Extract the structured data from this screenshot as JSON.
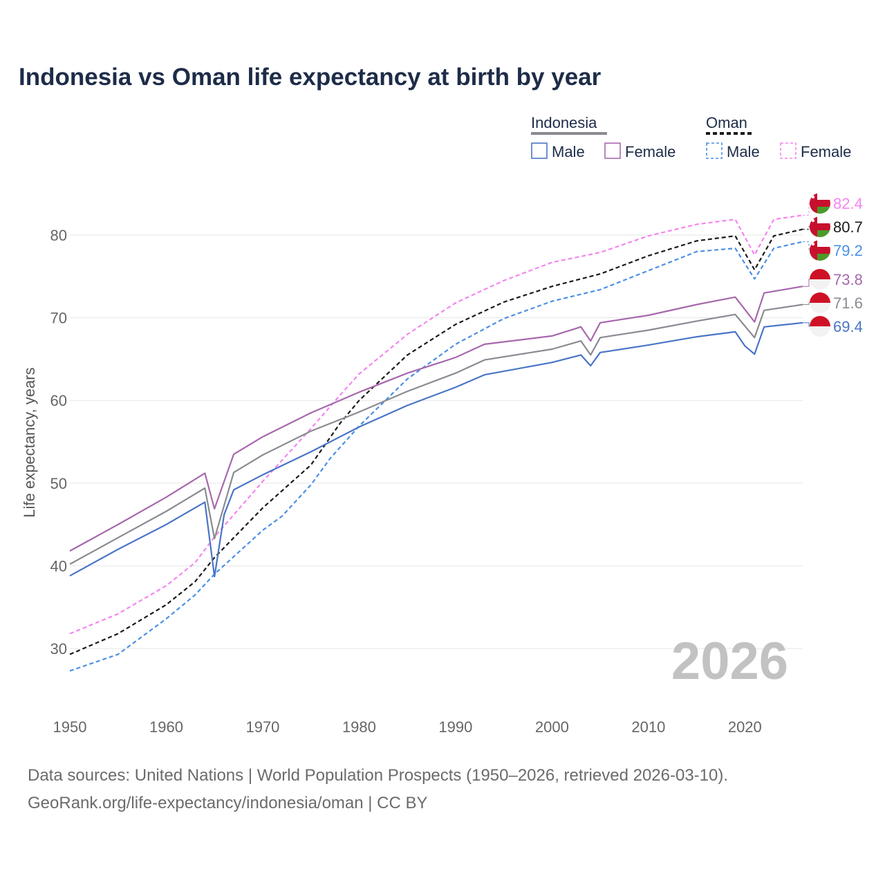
{
  "title": "Indonesia vs Oman life expectancy at birth by year",
  "legend": {
    "groups": [
      {
        "name": "Indonesia",
        "line_color": "#8a8a92",
        "dashed": false,
        "items": [
          {
            "label": "Male",
            "color": "#4a74c6"
          },
          {
            "label": "Female",
            "color": "#a668ad"
          }
        ]
      },
      {
        "name": "Oman",
        "line_color": "#1a1a1a",
        "dashed": true,
        "items": [
          {
            "label": "Male",
            "color": "#4a8fe6"
          },
          {
            "label": "Female",
            "color": "#f584f0"
          }
        ]
      }
    ]
  },
  "year_watermark": "2026",
  "footer": {
    "line1": "Data sources: United Nations | World Population Prospects (1950–2026, retrieved 2026-03-10).",
    "line2": "GeoRank.org/life-expectancy/indonesia/oman | CC BY"
  },
  "colors": {
    "indonesia_male": "#4a74c6",
    "indonesia_female": "#a668ad",
    "indonesia_total": "#8a8a92",
    "oman_male": "#4a8fe6",
    "oman_female": "#f584f0",
    "oman_total": "#1a1a1a",
    "title": "#1d2c48",
    "grid": "#e6e6e6"
  },
  "chart_data": {
    "type": "line",
    "ylabel": "Life expectancy, years",
    "xlabel": "",
    "xlim": [
      1950,
      2026
    ],
    "ylim": [
      22,
      90
    ],
    "x_ticks": [
      1950,
      1960,
      1970,
      1980,
      1990,
      2000,
      2010,
      2020
    ],
    "y_ticks": [
      30,
      40,
      50,
      60,
      70,
      80
    ],
    "grid": true,
    "series": [
      {
        "key": "oman_female",
        "name": "Oman Female",
        "country": "Oman",
        "dashed": true,
        "end_label": "82.4",
        "points": [
          [
            1950,
            31.8
          ],
          [
            1955,
            34.2
          ],
          [
            1960,
            37.6
          ],
          [
            1963,
            40.4
          ],
          [
            1965,
            43.5
          ],
          [
            1970,
            50.2
          ],
          [
            1975,
            56.6
          ],
          [
            1978,
            60.6
          ],
          [
            1980,
            63.2
          ],
          [
            1985,
            68.0
          ],
          [
            1990,
            71.8
          ],
          [
            1995,
            74.5
          ],
          [
            2000,
            76.7
          ],
          [
            2005,
            77.9
          ],
          [
            2010,
            79.9
          ],
          [
            2015,
            81.3
          ],
          [
            2019,
            81.9
          ],
          [
            2021,
            77.6
          ],
          [
            2023,
            81.9
          ],
          [
            2026,
            82.4
          ]
        ]
      },
      {
        "key": "oman_total",
        "name": "Oman",
        "country": "Oman",
        "dashed": true,
        "end_label": "80.7",
        "points": [
          [
            1950,
            29.3
          ],
          [
            1955,
            31.8
          ],
          [
            1960,
            35.3
          ],
          [
            1963,
            38.1
          ],
          [
            1965,
            41.0
          ],
          [
            1970,
            47.0
          ],
          [
            1975,
            52.2
          ],
          [
            1978,
            57.2
          ],
          [
            1980,
            60.0
          ],
          [
            1985,
            65.5
          ],
          [
            1990,
            69.2
          ],
          [
            1995,
            71.9
          ],
          [
            2000,
            73.8
          ],
          [
            2005,
            75.3
          ],
          [
            2010,
            77.5
          ],
          [
            2015,
            79.3
          ],
          [
            2019,
            79.9
          ],
          [
            2021,
            75.8
          ],
          [
            2023,
            79.9
          ],
          [
            2026,
            80.7
          ]
        ]
      },
      {
        "key": "oman_male",
        "name": "Oman Male",
        "country": "Oman",
        "dashed": true,
        "end_label": "79.2",
        "points": [
          [
            1950,
            27.3
          ],
          [
            1955,
            29.3
          ],
          [
            1960,
            33.6
          ],
          [
            1963,
            36.5
          ],
          [
            1965,
            39.0
          ],
          [
            1970,
            44.3
          ],
          [
            1972,
            46.0
          ],
          [
            1975,
            49.8
          ],
          [
            1977,
            53.0
          ],
          [
            1980,
            56.9
          ],
          [
            1985,
            62.6
          ],
          [
            1990,
            66.8
          ],
          [
            1995,
            69.9
          ],
          [
            2000,
            72.0
          ],
          [
            2005,
            73.4
          ],
          [
            2010,
            75.7
          ],
          [
            2015,
            78.0
          ],
          [
            2019,
            78.4
          ],
          [
            2021,
            74.7
          ],
          [
            2023,
            78.4
          ],
          [
            2026,
            79.2
          ]
        ]
      },
      {
        "key": "indonesia_female",
        "name": "Indonesia Female",
        "country": "Indonesia",
        "dashed": false,
        "end_label": "73.8",
        "points": [
          [
            1950,
            41.8
          ],
          [
            1955,
            45.0
          ],
          [
            1960,
            48.3
          ],
          [
            1964,
            51.2
          ],
          [
            1965,
            46.9
          ],
          [
            1967,
            53.5
          ],
          [
            1970,
            55.6
          ],
          [
            1975,
            58.5
          ],
          [
            1980,
            61.0
          ],
          [
            1985,
            63.3
          ],
          [
            1990,
            65.2
          ],
          [
            1993,
            66.8
          ],
          [
            2000,
            67.8
          ],
          [
            2003,
            68.9
          ],
          [
            2004,
            67.2
          ],
          [
            2005,
            69.4
          ],
          [
            2010,
            70.3
          ],
          [
            2015,
            71.6
          ],
          [
            2019,
            72.5
          ],
          [
            2021,
            69.5
          ],
          [
            2022,
            73.0
          ],
          [
            2026,
            73.8
          ]
        ]
      },
      {
        "key": "indonesia_total",
        "name": "Indonesia",
        "country": "Indonesia",
        "dashed": false,
        "end_label": "71.6",
        "points": [
          [
            1950,
            40.2
          ],
          [
            1955,
            43.4
          ],
          [
            1960,
            46.6
          ],
          [
            1964,
            49.4
          ],
          [
            1965,
            43.3
          ],
          [
            1967,
            51.3
          ],
          [
            1970,
            53.4
          ],
          [
            1975,
            56.3
          ],
          [
            1980,
            58.6
          ],
          [
            1985,
            61.1
          ],
          [
            1990,
            63.3
          ],
          [
            1993,
            64.9
          ],
          [
            2000,
            66.2
          ],
          [
            2003,
            67.2
          ],
          [
            2004,
            65.5
          ],
          [
            2005,
            67.6
          ],
          [
            2010,
            68.5
          ],
          [
            2015,
            69.6
          ],
          [
            2019,
            70.4
          ],
          [
            2021,
            67.6
          ],
          [
            2022,
            70.9
          ],
          [
            2026,
            71.6
          ]
        ]
      },
      {
        "key": "indonesia_male",
        "name": "Indonesia Male",
        "country": "Indonesia",
        "dashed": false,
        "end_label": "69.4",
        "points": [
          [
            1950,
            38.8
          ],
          [
            1955,
            42.0
          ],
          [
            1960,
            45.0
          ],
          [
            1964,
            47.7
          ],
          [
            1965,
            38.7
          ],
          [
            1966,
            46.2
          ],
          [
            1967,
            49.2
          ],
          [
            1970,
            51.0
          ],
          [
            1975,
            53.8
          ],
          [
            1980,
            56.8
          ],
          [
            1985,
            59.4
          ],
          [
            1990,
            61.6
          ],
          [
            1993,
            63.1
          ],
          [
            2000,
            64.6
          ],
          [
            2003,
            65.5
          ],
          [
            2004,
            64.2
          ],
          [
            2005,
            65.8
          ],
          [
            2010,
            66.7
          ],
          [
            2015,
            67.7
          ],
          [
            2019,
            68.3
          ],
          [
            2020,
            66.6
          ],
          [
            2021,
            65.6
          ],
          [
            2022,
            68.9
          ],
          [
            2026,
            69.4
          ]
        ]
      }
    ]
  }
}
